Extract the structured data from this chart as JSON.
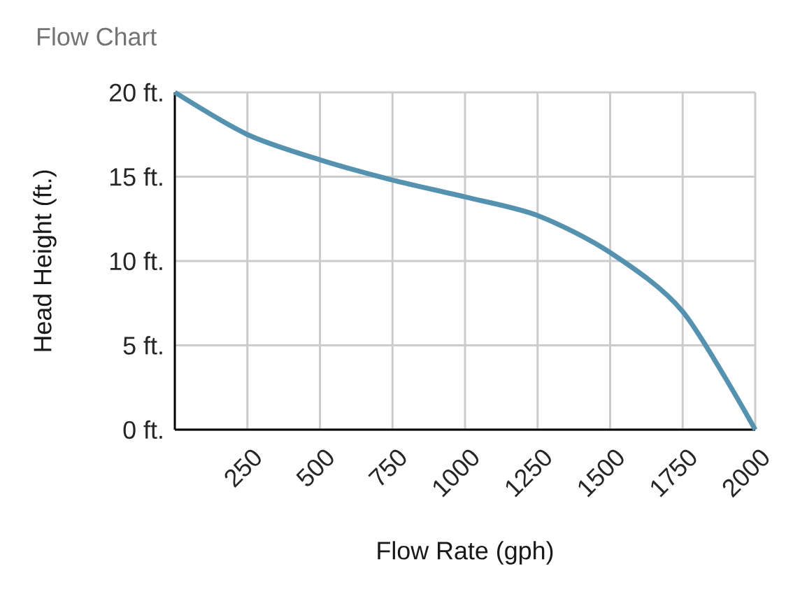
{
  "chart_data": {
    "type": "line",
    "title": "Flow Chart",
    "xlabel": "Flow Rate (gph)",
    "ylabel": "Head Height (ft.)",
    "x": [
      0,
      250,
      500,
      750,
      1000,
      1250,
      1500,
      1750,
      2000
    ],
    "series": [
      {
        "color": "#5592b0",
        "values": [
          20,
          17.5,
          16,
          14.8,
          13.8,
          12.7,
          10.5,
          7,
          0
        ]
      }
    ],
    "xlim": [
      0,
      2000
    ],
    "ylim": [
      0,
      20
    ],
    "xticks": [
      250,
      500,
      750,
      1000,
      1250,
      1500,
      1750,
      2000
    ],
    "yticks": [
      {
        "value": 0,
        "label": "0 ft."
      },
      {
        "value": 5,
        "label": "5 ft."
      },
      {
        "value": 10,
        "label": "10 ft."
      },
      {
        "value": 15,
        "label": "15 ft."
      },
      {
        "value": 20,
        "label": "20 ft."
      }
    ],
    "grid": true
  }
}
